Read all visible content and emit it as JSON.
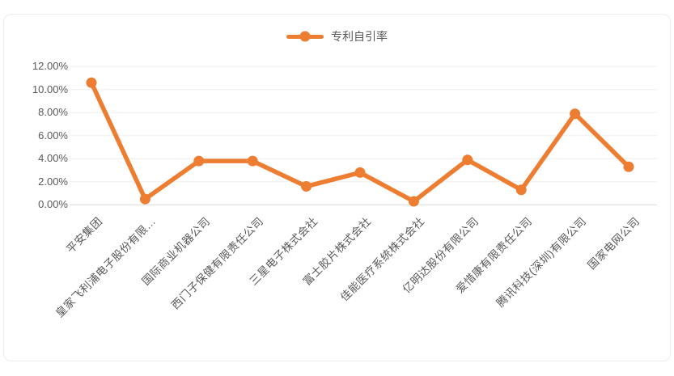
{
  "chart_data": {
    "type": "line",
    "legend": {
      "label": "专利自引率",
      "position": "top"
    },
    "categories": [
      "平安集团",
      "皇家飞利浦电子股份有限…",
      "国际商业机器公司",
      "西门子保健有限责任公司",
      "三星电子株式会社",
      "富士胶片株式会社",
      "佳能医疗系统株式会社",
      "亿明达股份有限公司",
      "爱惜康有限责任公司",
      "腾讯科技(深圳)有限公司",
      "国家电网公司"
    ],
    "series": [
      {
        "name": "专利自引率",
        "values": [
          10.6,
          0.5,
          3.8,
          3.8,
          1.6,
          2.8,
          0.3,
          3.9,
          1.3,
          7.9,
          3.3
        ]
      }
    ],
    "y_axis": {
      "min": 0,
      "max": 12,
      "step": 2,
      "unit": "%",
      "ticks": [
        "0.00%",
        "2.00%",
        "4.00%",
        "6.00%",
        "8.00%",
        "10.00%",
        "12.00%"
      ]
    },
    "x_axis": {
      "label_rotation_deg": 45
    },
    "grid": true,
    "colors": {
      "series": "#ED7D31",
      "grid": "#EDEDED",
      "axis_line": "#D9D9D9",
      "text": "#595959",
      "border": "#ECECEC",
      "background": "#FFFFFF"
    }
  }
}
